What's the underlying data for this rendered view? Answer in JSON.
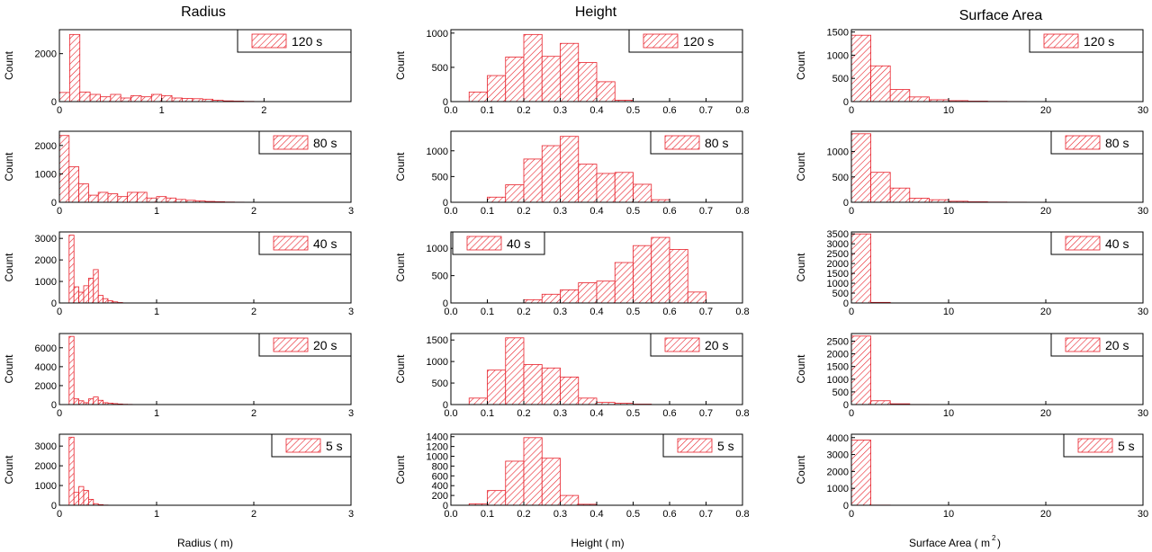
{
  "figure": {
    "column_titles": [
      "Radius",
      "Height",
      "Surface Area"
    ],
    "xlabels": [
      "Radius (  m)",
      "Height (  m)",
      "Surface Area (  m"
    ],
    "area_unit_exponent": "2",
    "area_unit_close": ")",
    "hatch_color": "#e8202a"
  },
  "chart_data": [
    {
      "type": "bar",
      "title": "Radius",
      "legend": "120 s",
      "legend_pos": "top-right",
      "xlabel": "",
      "ylabel": "Count",
      "xlim": [
        0,
        2.85
      ],
      "ylim": [
        0,
        3000
      ],
      "xticks": [
        0,
        1,
        2
      ],
      "xticklabels": [
        "0",
        "1",
        "2"
      ],
      "yticks": [
        0,
        2000
      ],
      "bin_start": 0,
      "bin_width": 0.1,
      "values": [
        380,
        2800,
        400,
        300,
        200,
        300,
        150,
        250,
        200,
        300,
        250,
        150,
        130,
        120,
        100,
        60,
        30,
        20,
        10,
        5
      ]
    },
    {
      "type": "bar",
      "title": "Height",
      "legend": "120 s",
      "legend_pos": "top-right",
      "xlabel": "",
      "ylabel": "Count",
      "xlim": [
        0,
        0.8
      ],
      "ylim": [
        0,
        1050
      ],
      "xticks": [
        0,
        0.1,
        0.2,
        0.3,
        0.4,
        0.5,
        0.6,
        0.7,
        0.8
      ],
      "xticklabels": [
        "0.0",
        "0.1",
        "0.2",
        "0.3",
        "0.4",
        "0.5",
        "0.6",
        "0.7",
        "0.8"
      ],
      "yticks": [
        0,
        500,
        1000
      ],
      "bin_start": 0.05,
      "bin_width": 0.05,
      "values": [
        140,
        380,
        650,
        980,
        660,
        850,
        570,
        290,
        20
      ]
    },
    {
      "type": "bar",
      "title": "Surface Area",
      "legend": "120 s",
      "legend_pos": "top-right",
      "xlabel": "",
      "ylabel": "Count",
      "xlim": [
        0,
        30
      ],
      "ylim": [
        0,
        1550
      ],
      "xticks": [
        0,
        10,
        20,
        30
      ],
      "xticklabels": [
        "0",
        "10",
        "20",
        "30"
      ],
      "yticks": [
        0,
        500,
        1000,
        1500
      ],
      "bin_start": 0,
      "bin_width": 2,
      "values": [
        1430,
        770,
        260,
        100,
        40,
        20,
        10,
        5,
        3,
        2
      ]
    },
    {
      "type": "bar",
      "title": "Radius",
      "legend": "80 s",
      "legend_pos": "top-right",
      "xlabel": "",
      "ylabel": "Count",
      "xlim": [
        0,
        3
      ],
      "ylim": [
        0,
        2500
      ],
      "xticks": [
        0,
        1,
        2,
        3
      ],
      "xticklabels": [
        "0",
        "1",
        "2",
        "3"
      ],
      "yticks": [
        0,
        1000,
        2000
      ],
      "bin_start": 0,
      "bin_width": 0.1,
      "values": [
        2350,
        1250,
        650,
        250,
        350,
        300,
        200,
        350,
        350,
        150,
        200,
        150,
        100,
        70,
        50,
        30,
        20,
        10,
        5,
        3
      ]
    },
    {
      "type": "bar",
      "title": "Height",
      "legend": "80 s",
      "legend_pos": "top-right",
      "xlabel": "",
      "ylabel": "Count",
      "xlim": [
        0,
        0.8
      ],
      "ylim": [
        0,
        1380
      ],
      "xticks": [
        0,
        0.1,
        0.2,
        0.3,
        0.4,
        0.5,
        0.6,
        0.7,
        0.8
      ],
      "xticklabels": [
        "0.0",
        "0.1",
        "0.2",
        "0.3",
        "0.4",
        "0.5",
        "0.6",
        "0.7",
        "0.8"
      ],
      "yticks": [
        0,
        500,
        1000
      ],
      "bin_start": 0.1,
      "bin_width": 0.05,
      "values": [
        100,
        340,
        840,
        1100,
        1280,
        740,
        560,
        580,
        350,
        50
      ]
    },
    {
      "type": "bar",
      "title": "Surface Area",
      "legend": "80 s",
      "legend_pos": "top-right",
      "xlabel": "",
      "ylabel": "Count",
      "xlim": [
        0,
        30
      ],
      "ylim": [
        0,
        1400
      ],
      "xticks": [
        0,
        10,
        20,
        30
      ],
      "xticklabels": [
        "0",
        "10",
        "20",
        "30"
      ],
      "yticks": [
        0,
        500,
        1000
      ],
      "bin_start": 0,
      "bin_width": 2,
      "values": [
        1350,
        590,
        280,
        80,
        50,
        20,
        10,
        5,
        3,
        2
      ]
    },
    {
      "type": "bar",
      "title": "Radius",
      "legend": "40 s",
      "legend_pos": "top-right",
      "xlabel": "",
      "ylabel": "Count",
      "xlim": [
        0,
        3
      ],
      "ylim": [
        0,
        3300
      ],
      "xticks": [
        0,
        1,
        2,
        3
      ],
      "xticklabels": [
        "0",
        "1",
        "2",
        "3"
      ],
      "yticks": [
        0,
        1000,
        2000,
        3000
      ],
      "bin_start": 0.1,
      "bin_width": 0.05,
      "values": [
        3150,
        750,
        500,
        800,
        1150,
        1550,
        350,
        200,
        100,
        50,
        20
      ]
    },
    {
      "type": "bar",
      "title": "Height",
      "legend": "40 s",
      "legend_pos": "top-left",
      "xlabel": "",
      "ylabel": "Count",
      "xlim": [
        0,
        0.8
      ],
      "ylim": [
        0,
        1300
      ],
      "xticks": [
        0,
        0.1,
        0.2,
        0.3,
        0.4,
        0.5,
        0.6,
        0.7,
        0.8
      ],
      "xticklabels": [
        "0.0",
        "0.1",
        "0.2",
        "0.3",
        "0.4",
        "0.5",
        "0.6",
        "0.7",
        "0.8"
      ],
      "yticks": [
        0,
        500,
        1000
      ],
      "bin_start": 0.2,
      "bin_width": 0.05,
      "values": [
        60,
        160,
        240,
        370,
        400,
        740,
        1050,
        1200,
        980,
        200
      ]
    },
    {
      "type": "bar",
      "title": "Surface Area",
      "legend": "40 s",
      "legend_pos": "top-right",
      "xlabel": "",
      "ylabel": "Count",
      "xlim": [
        0,
        30
      ],
      "ylim": [
        0,
        3600
      ],
      "xticks": [
        0,
        10,
        20,
        30
      ],
      "xticklabels": [
        "0",
        "10",
        "20",
        "30"
      ],
      "yticks": [
        0,
        500,
        1000,
        1500,
        2000,
        2500,
        3000,
        3500
      ],
      "bin_start": 0,
      "bin_width": 2,
      "values": [
        3500,
        30,
        5
      ]
    },
    {
      "type": "bar",
      "title": "Radius",
      "legend": "20 s",
      "legend_pos": "top-right",
      "xlabel": "",
      "ylabel": "Count",
      "xlim": [
        0,
        3
      ],
      "ylim": [
        0,
        7500
      ],
      "xticks": [
        0,
        1,
        2,
        3
      ],
      "xticklabels": [
        "0",
        "1",
        "2",
        "3"
      ],
      "yticks": [
        0,
        2000,
        4000,
        6000
      ],
      "bin_start": 0.1,
      "bin_width": 0.05,
      "values": [
        7200,
        600,
        400,
        200,
        600,
        800,
        450,
        200,
        150,
        100,
        60,
        30,
        20
      ]
    },
    {
      "type": "bar",
      "title": "Height",
      "legend": "20 s",
      "legend_pos": "top-right",
      "xlabel": "",
      "ylabel": "Count",
      "xlim": [
        0,
        0.8
      ],
      "ylim": [
        0,
        1650
      ],
      "xticks": [
        0,
        0.1,
        0.2,
        0.3,
        0.4,
        0.5,
        0.6,
        0.7,
        0.8
      ],
      "xticklabels": [
        "0.0",
        "0.1",
        "0.2",
        "0.3",
        "0.4",
        "0.5",
        "0.6",
        "0.7",
        "0.8"
      ],
      "yticks": [
        0,
        500,
        1000,
        1500
      ],
      "bin_start": 0.05,
      "bin_width": 0.05,
      "values": [
        150,
        800,
        1550,
        930,
        850,
        640,
        150,
        50,
        30,
        10
      ]
    },
    {
      "type": "bar",
      "title": "Surface Area",
      "legend": "20 s",
      "legend_pos": "top-right",
      "xlabel": "",
      "ylabel": "Count",
      "xlim": [
        0,
        30
      ],
      "ylim": [
        0,
        2800
      ],
      "xticks": [
        0,
        10,
        20,
        30
      ],
      "xticklabels": [
        "0",
        "10",
        "20",
        "30"
      ],
      "yticks": [
        0,
        500,
        1000,
        1500,
        2000,
        2500
      ],
      "bin_start": 0,
      "bin_width": 2,
      "values": [
        2700,
        150,
        30,
        5
      ]
    },
    {
      "type": "bar",
      "title": "Radius",
      "legend": "5 s",
      "legend_pos": "top-right",
      "xlabel": "Radius (  m)",
      "ylabel": "Count",
      "xlim": [
        0,
        3
      ],
      "ylim": [
        0,
        3600
      ],
      "xticks": [
        0,
        1,
        2,
        3
      ],
      "xticklabels": [
        "0",
        "1",
        "2",
        "3"
      ],
      "yticks": [
        0,
        1000,
        2000,
        3000
      ],
      "bin_start": 0.1,
      "bin_width": 0.05,
      "values": [
        3450,
        650,
        950,
        750,
        300,
        80,
        30,
        10
      ]
    },
    {
      "type": "bar",
      "title": "Height",
      "legend": "5 s",
      "legend_pos": "top-right",
      "xlabel": "Height (  m)",
      "ylabel": "Count",
      "xlim": [
        0,
        0.8
      ],
      "ylim": [
        0,
        1450
      ],
      "xticks": [
        0,
        0.1,
        0.2,
        0.3,
        0.4,
        0.5,
        0.6,
        0.7,
        0.8
      ],
      "xticklabels": [
        "0.0",
        "0.1",
        "0.2",
        "0.3",
        "0.4",
        "0.5",
        "0.6",
        "0.7",
        "0.8"
      ],
      "yticks": [
        0,
        200,
        400,
        600,
        800,
        1000,
        1200,
        1400
      ],
      "bin_start": 0.05,
      "bin_width": 0.05,
      "values": [
        30,
        300,
        900,
        1380,
        960,
        200,
        20
      ]
    },
    {
      "type": "bar",
      "title": "Surface Area",
      "legend": "5 s",
      "legend_pos": "top-right",
      "xlabel": "Surface Area (  m²)",
      "ylabel": "Count",
      "xlim": [
        0,
        30
      ],
      "ylim": [
        0,
        4200
      ],
      "xticks": [
        0,
        10,
        20,
        30
      ],
      "xticklabels": [
        "0",
        "10",
        "20",
        "30"
      ],
      "yticks": [
        0,
        1000,
        2000,
        3000,
        4000
      ],
      "bin_start": 0,
      "bin_width": 2,
      "values": [
        3850,
        10
      ]
    }
  ]
}
